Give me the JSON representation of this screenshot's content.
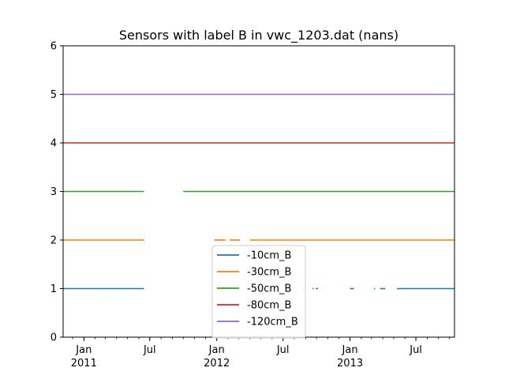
{
  "chart_data": {
    "type": "line",
    "title": "Sensors with label B in vwc_1203.dat (nans)",
    "xlabel": "",
    "ylabel": "",
    "xlim": [
      "2010-11-05",
      "2013-10-15"
    ],
    "ylim": [
      0,
      6
    ],
    "yticks": [
      0,
      1,
      2,
      3,
      4,
      5,
      6
    ],
    "xticks": [
      {
        "date": "2011-01-01",
        "label": "Jan",
        "sublabel": "2011"
      },
      {
        "date": "2011-07-01",
        "label": "Jul",
        "sublabel": ""
      },
      {
        "date": "2012-01-01",
        "label": "Jan",
        "sublabel": "2012"
      },
      {
        "date": "2012-07-01",
        "label": "Jul",
        "sublabel": ""
      },
      {
        "date": "2013-01-01",
        "label": "Jan",
        "sublabel": "2013"
      },
      {
        "date": "2013-07-01",
        "label": "Jul",
        "sublabel": ""
      }
    ],
    "grid": false,
    "legend_position": "lower-center",
    "series": [
      {
        "name": "-10cm_B",
        "color": "#1f77b4",
        "value": 1,
        "segments": [
          [
            "2010-11-05",
            "2011-06-15"
          ],
          [
            "2012-08-25",
            "2012-08-28"
          ],
          [
            "2012-09-20",
            "2012-09-23"
          ],
          [
            "2012-09-29",
            "2012-10-05"
          ],
          [
            "2013-01-01",
            "2013-01-12"
          ],
          [
            "2013-03-08",
            "2013-03-11"
          ],
          [
            "2013-03-25",
            "2013-04-08"
          ],
          [
            "2013-05-10",
            "2013-10-15"
          ]
        ]
      },
      {
        "name": "-30cm_B",
        "color": "#ff7f0e",
        "value": 2,
        "segments": [
          [
            "2010-11-05",
            "2011-06-15"
          ],
          [
            "2011-12-25",
            "2012-01-25"
          ],
          [
            "2012-02-05",
            "2012-03-05"
          ],
          [
            "2012-04-01",
            "2013-10-15"
          ]
        ]
      },
      {
        "name": "-50cm_B",
        "color": "#2ca02c",
        "value": 3,
        "segments": [
          [
            "2010-11-05",
            "2011-06-15"
          ],
          [
            "2011-10-01",
            "2013-10-15"
          ]
        ]
      },
      {
        "name": "-80cm_B",
        "color": "#d62728",
        "value": 4,
        "segments": [
          [
            "2010-11-05",
            "2013-10-15"
          ]
        ]
      },
      {
        "name": "-120cm_B",
        "color": "#9467bd",
        "value": 5,
        "segments": [
          [
            "2010-11-05",
            "2013-10-15"
          ]
        ]
      }
    ]
  }
}
